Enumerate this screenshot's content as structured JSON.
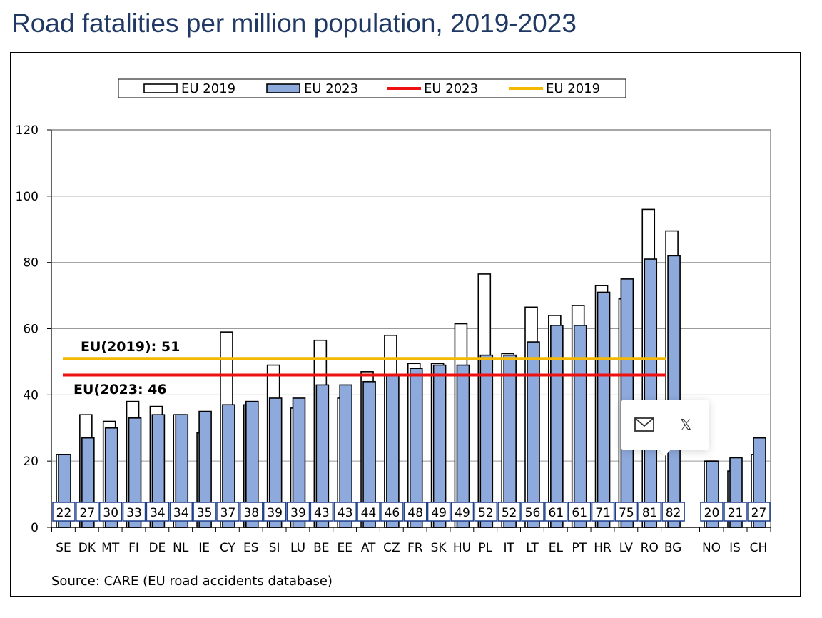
{
  "title": "Road fatalities per million population, 2019-2023",
  "source": "Source: CARE (EU road accidents database)",
  "share": {
    "email_icon": "envelope-icon",
    "x_icon": "x-logo-icon",
    "x_glyph": "𝕏"
  },
  "chart_data": {
    "type": "bar",
    "title": "Road fatalities per million population, 2019-2023",
    "xlabel": "",
    "ylabel": "",
    "ylim": [
      0,
      120
    ],
    "yticks": [
      0,
      20,
      40,
      60,
      80,
      100,
      120
    ],
    "grid": true,
    "legend_position": "top",
    "legend": [
      {
        "label": "EU 2019",
        "kind": "bar",
        "fill": "#ffffff",
        "stroke": "#000000"
      },
      {
        "label": "EU 2023",
        "kind": "bar",
        "fill": "#8ea9db",
        "stroke": "#000000"
      },
      {
        "label": "EU 2023",
        "kind": "line",
        "color": "#ee1111"
      },
      {
        "label": "EU 2019",
        "kind": "line",
        "color": "#f5b800"
      }
    ],
    "categories": [
      "SE",
      "DK",
      "MT",
      "FI",
      "DE",
      "NL",
      "IE",
      "CY",
      "ES",
      "SI",
      "LU",
      "BE",
      "EE",
      "AT",
      "CZ",
      "FR",
      "SK",
      "HU",
      "PL",
      "IT",
      "LT",
      "EL",
      "PT",
      "HR",
      "LV",
      "RO",
      "BG",
      "NO",
      "IS",
      "CH"
    ],
    "series": [
      {
        "name": "EU 2019",
        "color": "#ffffff",
        "values": [
          22,
          34,
          32,
          38,
          36.5,
          34,
          28.5,
          59,
          37,
          49,
          36,
          56.5,
          39,
          47,
          58,
          49.5,
          49.5,
          61.5,
          76.5,
          52.5,
          66.5,
          64,
          67,
          73,
          69,
          96,
          89.5,
          20,
          17,
          22
        ]
      },
      {
        "name": "EU 2023",
        "color": "#8ea9db",
        "values": [
          22,
          27,
          30,
          33,
          34,
          34,
          35,
          37,
          38,
          39,
          39,
          43,
          43,
          44,
          46,
          48,
          49,
          49,
          52,
          52,
          56,
          61,
          61,
          71,
          75,
          81,
          82,
          20,
          21,
          27
        ]
      }
    ],
    "data_labels": [
      22,
      27,
      30,
      33,
      34,
      34,
      35,
      37,
      38,
      39,
      39,
      43,
      43,
      44,
      46,
      48,
      49,
      49,
      52,
      52,
      56,
      61,
      61,
      71,
      75,
      81,
      82,
      20,
      21,
      27
    ],
    "reference_lines": [
      {
        "name": "EU 2019",
        "value": 51,
        "color": "#f5b800",
        "label": "EU(2019): 51"
      },
      {
        "name": "EU 2023",
        "value": 46,
        "color": "#ee1111",
        "label": "EU(2023: 46"
      }
    ]
  }
}
